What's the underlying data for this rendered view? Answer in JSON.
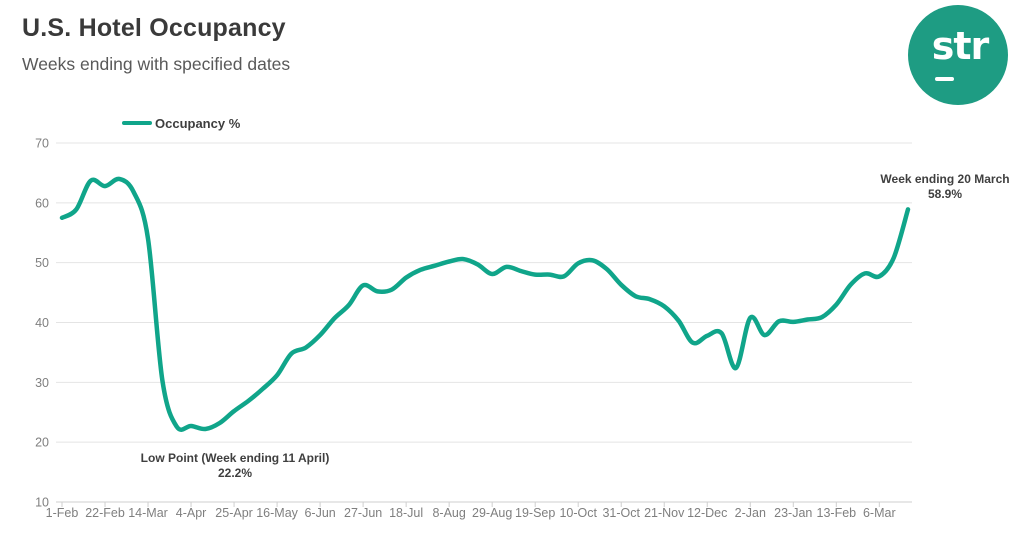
{
  "header": {
    "title": "U.S. Hotel Occupancy",
    "subtitle": "Weeks ending with specified dates"
  },
  "logo": {
    "text": "str",
    "color": "#1e9c83"
  },
  "legend": {
    "label": "Occupancy %"
  },
  "annotations": {
    "low": {
      "title": "Low Point (Week ending 11 April)",
      "value": "22.2%"
    },
    "peak": {
      "title": "Week ending 20 March",
      "value": "58.9%"
    }
  },
  "chart_data": {
    "type": "line",
    "title": "U.S. Hotel Occupancy",
    "subtitle": "Weeks ending with specified dates",
    "series_name": "Occupancy %",
    "x": [
      "1-Feb",
      "8-Feb",
      "15-Feb",
      "22-Feb",
      "29-Feb",
      "7-Mar",
      "14-Mar",
      "21-Mar",
      "28-Mar",
      "4-Apr",
      "11-Apr",
      "18-Apr",
      "25-Apr",
      "2-May",
      "9-May",
      "16-May",
      "23-May",
      "30-May",
      "6-Jun",
      "13-Jun",
      "20-Jun",
      "27-Jun",
      "4-Jul",
      "11-Jul",
      "18-Jul",
      "25-Jul",
      "1-Aug",
      "8-Aug",
      "15-Aug",
      "22-Aug",
      "29-Aug",
      "5-Sep",
      "12-Sep",
      "19-Sep",
      "26-Sep",
      "3-Oct",
      "10-Oct",
      "17-Oct",
      "24-Oct",
      "31-Oct",
      "7-Nov",
      "14-Nov",
      "21-Nov",
      "28-Nov",
      "5-Dec",
      "12-Dec",
      "19-Dec",
      "26-Dec",
      "2-Jan",
      "9-Jan",
      "16-Jan",
      "23-Jan",
      "30-Jan",
      "6-Feb",
      "13-Feb",
      "20-Feb",
      "27-Feb",
      "6-Mar",
      "13-Mar",
      "20-Mar"
    ],
    "values": [
      57.5,
      58.9,
      63.7,
      62.8,
      64.0,
      61.8,
      54.0,
      30.3,
      22.6,
      22.7,
      22.2,
      23.2,
      25.2,
      26.9,
      28.9,
      31.2,
      34.8,
      35.8,
      37.9,
      40.7,
      42.9,
      46.2,
      45.2,
      45.5,
      47.5,
      48.8,
      49.5,
      50.2,
      50.6,
      49.7,
      48.1,
      49.3,
      48.6,
      48.0,
      48.0,
      47.7,
      49.9,
      50.4,
      48.9,
      46.3,
      44.4,
      43.9,
      42.7,
      40.3,
      36.6,
      37.8,
      38.2,
      32.4,
      40.8,
      37.9,
      40.2,
      40.1,
      40.5,
      40.9,
      43.0,
      46.3,
      48.2,
      47.7,
      50.8,
      58.9
    ],
    "x_tick_labels": [
      "1-Feb",
      "22-Feb",
      "14-Mar",
      "4-Apr",
      "25-Apr",
      "16-May",
      "6-Jun",
      "27-Jun",
      "18-Jul",
      "8-Aug",
      "29-Aug",
      "19-Sep",
      "10-Oct",
      "31-Oct",
      "21-Nov",
      "12-Dec",
      "2-Jan",
      "23-Jan",
      "13-Feb",
      "6-Mar"
    ],
    "x_tick_every": 3,
    "y_ticks": [
      10,
      20,
      30,
      40,
      50,
      60,
      70
    ],
    "ylim": [
      10,
      70
    ],
    "grid": "horizontal",
    "legend_position": "top-left",
    "line_color": "#10a58a",
    "annotation_low_index": 10,
    "annotation_peak_index": 59
  },
  "colors": {
    "line": "#10a58a",
    "logo": "#1e9c83",
    "grid": "#e4e4e4",
    "axis": "#cfcfcf",
    "axis_text": "#7f7f7f",
    "text_dark": "#3a3a3a"
  }
}
